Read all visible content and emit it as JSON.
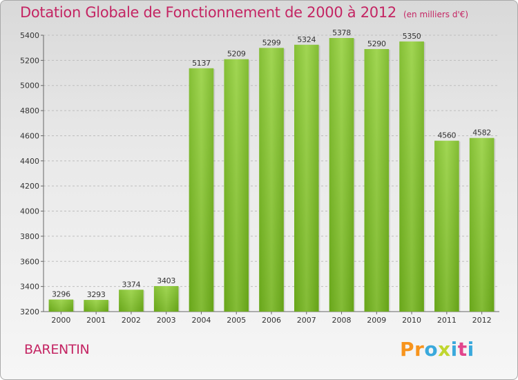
{
  "chart_data": {
    "type": "bar",
    "title": "Dotation Globale de Fonctionnement de 2000 à 2012",
    "subtitle": "(en milliers d'€)",
    "categories": [
      "2000",
      "2001",
      "2002",
      "2003",
      "2004",
      "2005",
      "2006",
      "2007",
      "2008",
      "2009",
      "2010",
      "2011",
      "2012"
    ],
    "values": [
      3296,
      3293,
      3374,
      3403,
      5137,
      5209,
      5299,
      5324,
      5378,
      5290,
      5350,
      4560,
      4582
    ],
    "ylim": [
      3200,
      5400
    ],
    "yticks": [
      3200,
      3400,
      3600,
      3800,
      4000,
      4200,
      4400,
      4600,
      4800,
      5000,
      5200,
      5400
    ],
    "grid": true,
    "bar_color": "#7fbf2a"
  },
  "footer": {
    "city": "BARENTIN",
    "logo": {
      "letters": [
        "P",
        "r",
        "o",
        "x",
        "i",
        "t",
        "i"
      ],
      "colors": [
        "#f7941d",
        "#f7941d",
        "#3aa9dc",
        "#c0d62f",
        "#3aa9dc",
        "#e2458c",
        "#3aa9dc"
      ]
    }
  }
}
